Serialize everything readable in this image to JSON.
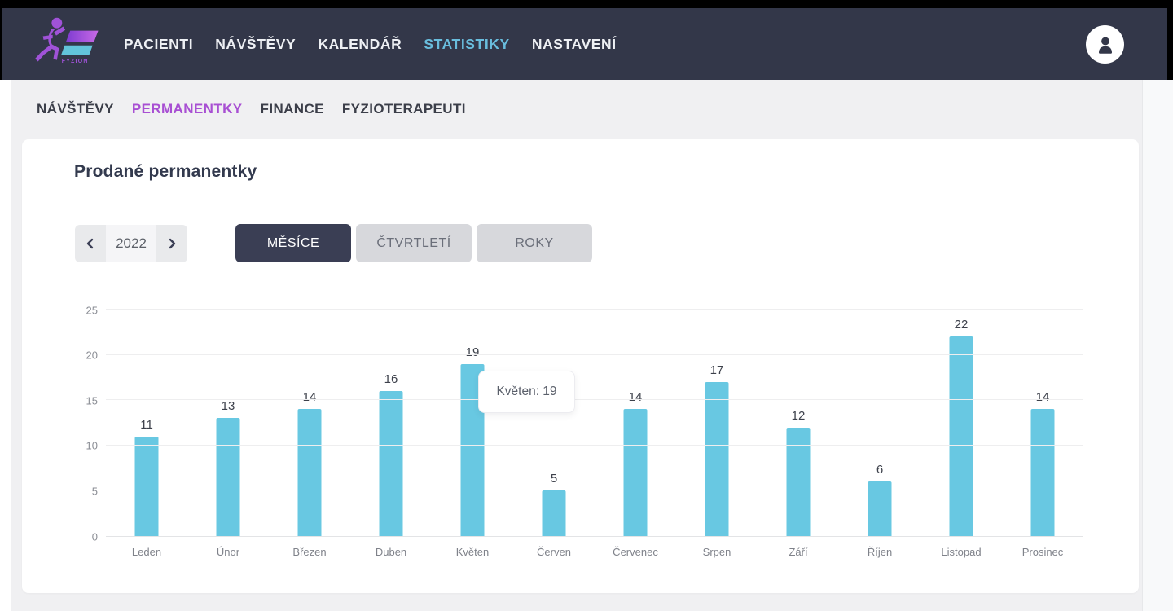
{
  "navbar": {
    "logo_text": "FYZION",
    "items": [
      {
        "label": "PACIENTI"
      },
      {
        "label": "NÁVŠTĚVY"
      },
      {
        "label": "KALENDÁŘ"
      },
      {
        "label": "STATISTIKY",
        "active": true
      },
      {
        "label": "NASTAVENÍ"
      }
    ]
  },
  "subnav": {
    "items": [
      {
        "label": "NÁVŠTĚVY"
      },
      {
        "label": "PERMANENTKY",
        "active": true
      },
      {
        "label": "FINANCE"
      },
      {
        "label": "FYZIOTERAPEUTI"
      }
    ]
  },
  "main": {
    "title": "Prodané permanentky",
    "year_selector": {
      "value": "2022"
    },
    "view_tabs": [
      {
        "label": "MĚSÍCE",
        "active": true
      },
      {
        "label": "ČTVRTLETÍ"
      },
      {
        "label": "ROKY"
      }
    ]
  },
  "chart_data": {
    "type": "bar",
    "title": "Prodané permanentky",
    "categories": [
      "Leden",
      "Únor",
      "Březen",
      "Duben",
      "Květen",
      "Červen",
      "Červenec",
      "Srpen",
      "Září",
      "Říjen",
      "Listopad",
      "Prosinec"
    ],
    "values": [
      11,
      13,
      14,
      16,
      19,
      5,
      14,
      17,
      12,
      6,
      22,
      14
    ],
    "xlabel": "",
    "ylabel": "",
    "ylim": [
      0,
      25
    ],
    "yticks": [
      0,
      5,
      10,
      15,
      20,
      25
    ],
    "grid": "horizontal",
    "legend": "none",
    "value_labels": true,
    "bar_color": "#68c8e2",
    "tooltip": {
      "text": "Květen: 19",
      "category": "Květen",
      "value": 19
    }
  },
  "colors": {
    "navbar_bg": "#333749",
    "nav_active": "#69bddd",
    "subnav_active": "#a84fd3",
    "page_bg": "#f0f0f2",
    "bar": "#68c8e2",
    "active_tab_bg": "#3a3e54"
  }
}
